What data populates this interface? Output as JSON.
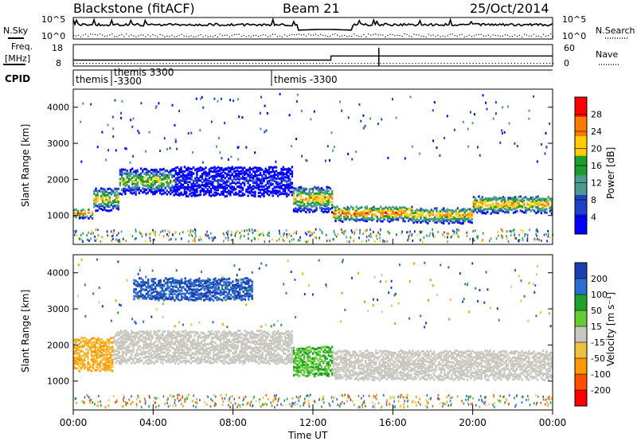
{
  "header": {
    "station": "Blackstone (fitACF)",
    "beam": "Beam 21",
    "date": "25/Oct/2014"
  },
  "top_panel": {
    "nsky_label": "N.Sky",
    "nsearch_label": "N.Search",
    "freq_label_1": "Freq.",
    "freq_label_2": "[MHz]",
    "nave_label": "Nave",
    "cpid_label": "CPID",
    "noise_ticks": [
      "10^5",
      "10^0"
    ],
    "freq_ticks": [
      "18",
      "8"
    ],
    "nave_ticks": [
      "60",
      "0"
    ]
  },
  "cpid_segments": [
    {
      "label": "themis",
      "start_hr": 0.0
    },
    {
      "label": "themis 3300\n-3300",
      "start_hr": 1.9
    },
    {
      "label": "themis -3300",
      "start_hr": 10.0
    }
  ],
  "power_panel": {
    "ylabel": "Slant Range [km]",
    "colorbar_label": "Power [dB]",
    "colorbar_ticks": [
      "28",
      "24",
      "20",
      "16",
      "12",
      "8",
      "4"
    ],
    "colorbar_colors": [
      "#ff0000",
      "#ff7a00",
      "#ffcc00",
      "#1e9c2c",
      "#4c9a90",
      "#2040c8",
      "#0000ff"
    ]
  },
  "velocity_panel": {
    "ylabel": "Slant Range [km]",
    "colorbar_label": "Velocity [m s⁻¹]",
    "colorbar_ticks": [
      "200",
      "100",
      "50",
      "15",
      "-15",
      "-50",
      "-100",
      "-200"
    ],
    "colorbar_colors": [
      "#1a3fb0",
      "#2a6fd0",
      "#1ea02c",
      "#66cc33",
      "#c8c8c0",
      "#f0c040",
      "#ff9900",
      "#ff5000",
      "#ff0000"
    ]
  },
  "xaxis": {
    "label": "Time UT",
    "ticks": [
      "00:00",
      "04:00",
      "08:00",
      "12:00",
      "16:00",
      "20:00",
      "00:00"
    ]
  },
  "chart_data": {
    "type": "heatmap",
    "title": "Blackstone (fitACF)",
    "xlabel": "Time UT",
    "ylabel": "Slant Range [km]",
    "xlim_hours": [
      0,
      24
    ],
    "ylim_km": [
      200,
      4500
    ],
    "yticks": [
      1000,
      2000,
      3000,
      4000
    ],
    "frequency_mhz": [
      {
        "t_start": 0,
        "t_end": 12.9,
        "f": 10.5
      },
      {
        "t_start": 12.9,
        "t_end": 24,
        "f": 12.5
      }
    ],
    "power_bands_db": [
      {
        "t_start": 0.0,
        "t_end": 1.0,
        "r_center": 1100,
        "r_width": 250,
        "power": 26
      },
      {
        "t_start": 1.0,
        "t_end": 2.3,
        "r_center": 1500,
        "r_width": 600,
        "power": 22
      },
      {
        "t_start": 2.3,
        "t_end": 5.0,
        "r_center": 2000,
        "r_width": 700,
        "power": 20
      },
      {
        "t_start": 5.0,
        "t_end": 11.0,
        "r_center": 2000,
        "r_width": 800,
        "power": 8
      },
      {
        "t_start": 11.0,
        "t_end": 13.0,
        "r_center": 1500,
        "r_width": 700,
        "power": 22
      },
      {
        "t_start": 13.0,
        "t_end": 17.0,
        "r_center": 1100,
        "r_width": 400,
        "power": 26
      },
      {
        "t_start": 17.0,
        "t_end": 20.0,
        "r_center": 1050,
        "r_width": 400,
        "power": 24
      },
      {
        "t_start": 20.0,
        "t_end": 24.0,
        "r_center": 1350,
        "r_width": 450,
        "power": 24
      }
    ],
    "velocity_bands_ms": [
      {
        "t_start": 0.0,
        "t_end": 2.0,
        "r_center": 1800,
        "r_width": 900,
        "velocity": -50
      },
      {
        "t_start": 2.0,
        "t_end": 11.0,
        "r_center": 2000,
        "r_width": 900,
        "velocity": 0
      },
      {
        "t_start": 3.0,
        "t_end": 9.0,
        "r_center": 3600,
        "r_width": 600,
        "velocity": 150
      },
      {
        "t_start": 11.0,
        "t_end": 13.0,
        "r_center": 1600,
        "r_width": 800,
        "velocity": 30
      },
      {
        "t_start": 13.0,
        "t_end": 24.0,
        "r_center": 1500,
        "r_width": 800,
        "velocity": 0
      }
    ]
  }
}
